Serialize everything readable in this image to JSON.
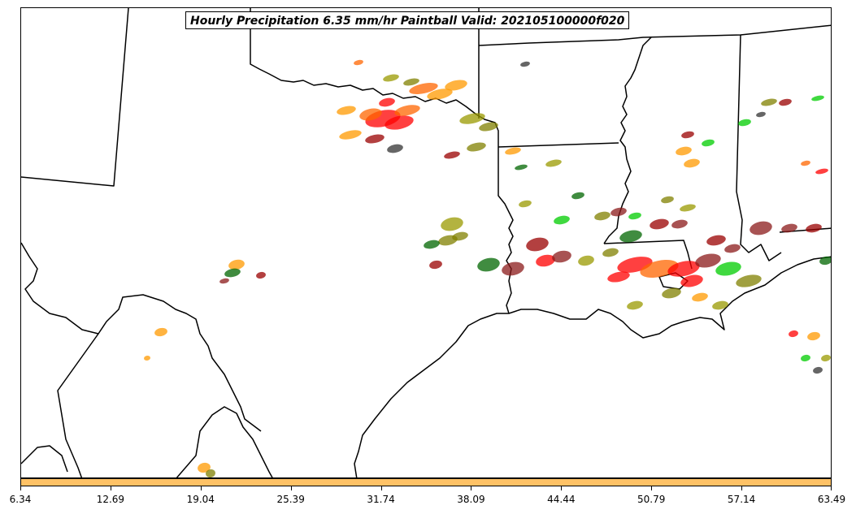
{
  "title": "Hourly Precipitation 6.35 mm/hr Paintball Valid: 202105100000f020",
  "colorbar": {
    "color": "#ffc266",
    "ticks": [
      "6.34",
      "12.69",
      "19.04",
      "25.39",
      "31.74",
      "38.09",
      "44.44",
      "50.79",
      "57.14",
      "63.49"
    ]
  },
  "map": {
    "region": "Southern Plains / Gulf Coast",
    "coastline_color": "#000000",
    "member_colors": [
      "#ff0000",
      "#ff6600",
      "#ff9900",
      "#990000",
      "#8b1a1a",
      "#006600",
      "#00cc00",
      "#999900",
      "#808000",
      "#333333"
    ]
  }
}
